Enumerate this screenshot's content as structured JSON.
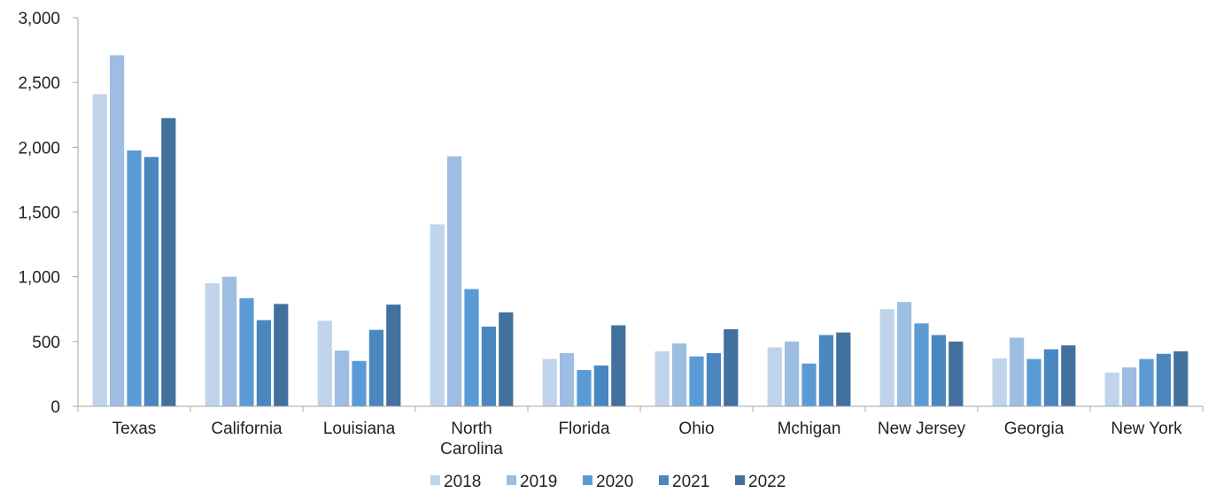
{
  "chart_data": {
    "type": "bar",
    "categories": [
      "Texas",
      "California",
      "Louisiana",
      "North Carolina",
      "Florida",
      "Ohio",
      "Mchigan",
      "New Jersey",
      "Georgia",
      "New York"
    ],
    "category_lines": [
      [
        "Texas"
      ],
      [
        "California"
      ],
      [
        "Louisiana"
      ],
      [
        "North",
        "Carolina"
      ],
      [
        "Florida"
      ],
      [
        "Ohio"
      ],
      [
        "Mchigan"
      ],
      [
        "New Jersey"
      ],
      [
        "Georgia"
      ],
      [
        "New York"
      ]
    ],
    "series": [
      {
        "name": "2018",
        "color": "#c0d4ec",
        "values": [
          2410,
          950,
          660,
          1405,
          365,
          425,
          455,
          750,
          370,
          260
        ]
      },
      {
        "name": "2019",
        "color": "#9dbde2",
        "values": [
          2710,
          1000,
          430,
          1930,
          410,
          485,
          500,
          805,
          530,
          300
        ]
      },
      {
        "name": "2020",
        "color": "#5b9bd5",
        "values": [
          1975,
          835,
          350,
          905,
          280,
          385,
          330,
          640,
          365,
          365
        ]
      },
      {
        "name": "2021",
        "color": "#4a86c0",
        "values": [
          1925,
          665,
          590,
          615,
          315,
          410,
          550,
          550,
          440,
          405
        ]
      },
      {
        "name": "2022",
        "color": "#41719c",
        "values": [
          2225,
          790,
          785,
          725,
          625,
          595,
          570,
          500,
          470,
          425
        ]
      }
    ],
    "ylim": [
      0,
      3000
    ],
    "yticks": [
      "0",
      "500",
      "1,000",
      "1,500",
      "2,000",
      "2,500",
      "3,000"
    ],
    "ytick_values": [
      0,
      500,
      1000,
      1500,
      2000,
      2500,
      3000
    ],
    "title": "",
    "xlabel": "",
    "ylabel": "",
    "grid": false,
    "legend_position": "bottom",
    "axis_color": "#a6a6a6"
  }
}
